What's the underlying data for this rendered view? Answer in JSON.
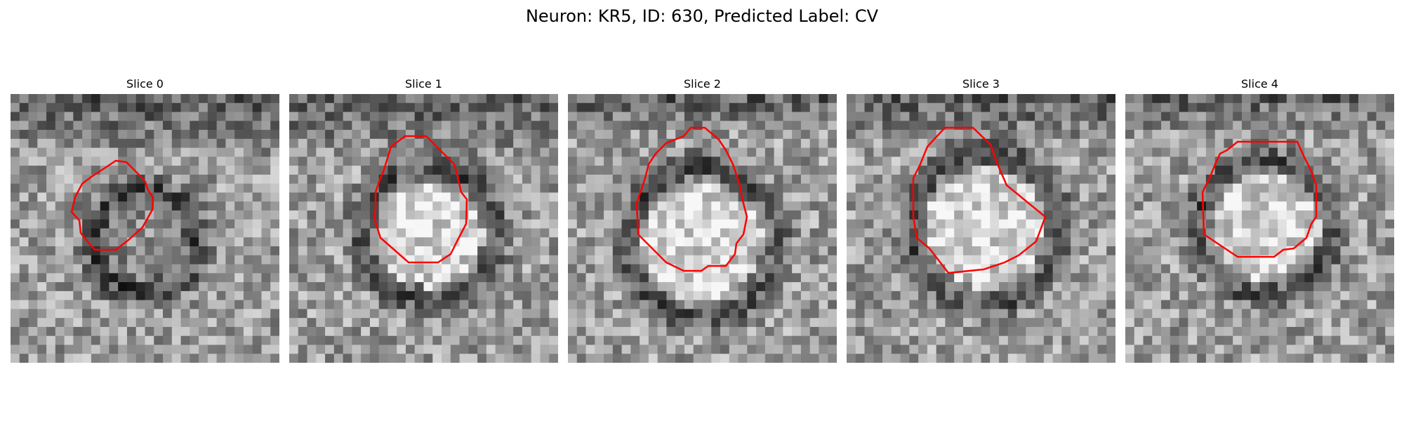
{
  "figure": {
    "title": "Neuron: KR5, ID: 630, Predicted Label: CV"
  },
  "colors": {
    "contour": "#ff0000",
    "background": "#ffffff"
  },
  "slices": [
    {
      "label": "Slice 0"
    },
    {
      "label": "Slice 1"
    },
    {
      "label": "Slice 2"
    },
    {
      "label": "Slice 3"
    },
    {
      "label": "Slice 4"
    }
  ]
}
